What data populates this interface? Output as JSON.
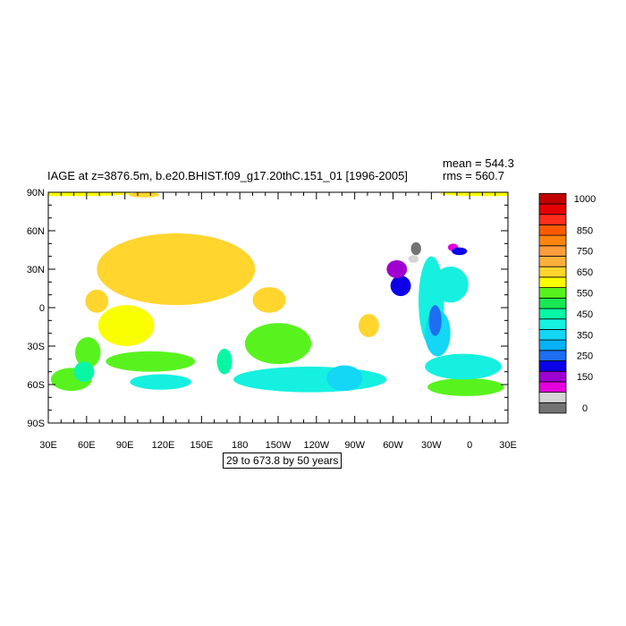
{
  "title": "IAGE at z=3876.5m, b.e20.BHIST.f09_g17.20thC.151_01 [1996-2005]",
  "stats": {
    "mean": "mean = 544.3",
    "rms": "rms = 560.7"
  },
  "info": "29 to 673.8 by 50 years",
  "map": {
    "lat_ticks": [
      {
        "lat": 90,
        "label": "90N"
      },
      {
        "lat": 60,
        "label": "60N"
      },
      {
        "lat": 30,
        "label": "30N"
      },
      {
        "lat": 0,
        "label": "0"
      },
      {
        "lat": -30,
        "label": "30S"
      },
      {
        "lat": -60,
        "label": "60S"
      },
      {
        "lat": -90,
        "label": "90S"
      }
    ],
    "lon_ticks": [
      {
        "lon": 30,
        "label": "30E"
      },
      {
        "lon": 60,
        "label": "60E"
      },
      {
        "lon": 90,
        "label": "90E"
      },
      {
        "lon": 120,
        "label": "120E"
      },
      {
        "lon": 150,
        "label": "150E"
      },
      {
        "lon": 180,
        "label": "180"
      },
      {
        "lon": 210,
        "label": "150W"
      },
      {
        "lon": 240,
        "label": "120W"
      },
      {
        "lon": 270,
        "label": "90W"
      },
      {
        "lon": 300,
        "label": "60W"
      },
      {
        "lon": 330,
        "label": "30W"
      },
      {
        "lon": 360,
        "label": "0"
      },
      {
        "lon": 390,
        "label": "30E"
      }
    ],
    "lon_range": [
      30,
      390
    ],
    "lat_range": [
      -90,
      90
    ]
  },
  "colorbar": {
    "colors": [
      "#737373",
      "#d4d4d4",
      "#e600dc",
      "#9f00cf",
      "#0c00e8",
      "#1d6ef0",
      "#07b1f5",
      "#14d6f5",
      "#16f0e0",
      "#09f7a5",
      "#19e854",
      "#58f31e",
      "#faff00",
      "#ffd52e",
      "#ffb03c",
      "#ff9c3c",
      "#fc8512",
      "#ff5a00",
      "#ff2d1c",
      "#e50000",
      "#c00000"
    ],
    "labels": [
      {
        "at": 0,
        "text": "0"
      },
      {
        "at": 3,
        "text": "150"
      },
      {
        "at": 5,
        "text": "250"
      },
      {
        "at": 7,
        "text": "350"
      },
      {
        "at": 9,
        "text": "450"
      },
      {
        "at": 11,
        "text": "550"
      },
      {
        "at": 13,
        "text": "650"
      },
      {
        "at": 15,
        "text": "750"
      },
      {
        "at": 17,
        "text": "850"
      },
      {
        "at": 20,
        "text": "1000"
      }
    ]
  },
  "regions": [
    {
      "color": "#ffd52e",
      "lon": 130,
      "lat": 30,
      "rlon": 62,
      "rlat": 28
    },
    {
      "color": "#ffd52e",
      "lon": 68,
      "lat": 5,
      "rlon": 9,
      "rlat": 9
    },
    {
      "color": "#ffd52e",
      "lon": 203,
      "lat": 6,
      "rlon": 13,
      "rlat": 10
    },
    {
      "color": "#ffd52e",
      "lon": 281,
      "lat": -14,
      "rlon": 8,
      "rlat": 9
    },
    {
      "color": "#faff00",
      "lon": 91,
      "lat": -14,
      "rlon": 22,
      "rlat": 16
    },
    {
      "color": "#faff00",
      "lon": 42,
      "lat": 89,
      "rlon": 53,
      "rlat": 2
    },
    {
      "color": "#faff00",
      "lon": 372,
      "lat": 89,
      "rlon": 35,
      "rlat": 2
    },
    {
      "color": "#ffd52e",
      "lon": 105,
      "lat": 88,
      "rlon": 12,
      "rlat": 2
    },
    {
      "color": "#58f31e",
      "lon": 210,
      "lat": -28,
      "rlon": 26,
      "rlat": 16
    },
    {
      "color": "#58f31e",
      "lon": 110,
      "lat": -42,
      "rlon": 35,
      "rlat": 8
    },
    {
      "color": "#58f31e",
      "lon": 48,
      "lat": -56,
      "rlon": 16,
      "rlat": 9
    },
    {
      "color": "#58f31e",
      "lon": 357,
      "lat": -62,
      "rlon": 30,
      "rlat": 7
    },
    {
      "color": "#58f31e",
      "lon": 61,
      "lat": -35,
      "rlon": 10,
      "rlat": 12
    },
    {
      "color": "#09f7a5",
      "lon": 168,
      "lat": -42,
      "rlon": 6,
      "rlat": 10
    },
    {
      "color": "#09f7a5",
      "lon": 58,
      "lat": -50,
      "rlon": 8,
      "rlat": 8
    },
    {
      "color": "#16f0e0",
      "lon": 235,
      "lat": -56,
      "rlon": 60,
      "rlat": 10
    },
    {
      "color": "#16f0e0",
      "lon": 118,
      "lat": -58,
      "rlon": 24,
      "rlat": 6
    },
    {
      "color": "#16f0e0",
      "lon": 355,
      "lat": -46,
      "rlon": 30,
      "rlat": 10
    },
    {
      "color": "#16f0e0",
      "lon": 330,
      "lat": 5,
      "rlon": 10,
      "rlat": 35
    },
    {
      "color": "#16f0e0",
      "lon": 345,
      "lat": 18,
      "rlon": 14,
      "rlat": 14
    },
    {
      "color": "#14d6f5",
      "lon": 335,
      "lat": -20,
      "rlon": 10,
      "rlat": 18
    },
    {
      "color": "#14d6f5",
      "lon": 262,
      "lat": -55,
      "rlon": 14,
      "rlat": 10
    },
    {
      "color": "#1d6ef0",
      "lon": 333,
      "lat": -10,
      "rlon": 5,
      "rlat": 12
    },
    {
      "color": "#0c00e8",
      "lon": 306,
      "lat": 17,
      "rlon": 8,
      "rlat": 8
    },
    {
      "color": "#9f00cf",
      "lon": 303,
      "lat": 30,
      "rlon": 8,
      "rlat": 7
    },
    {
      "color": "#e600dc",
      "lon": 347,
      "lat": 47,
      "rlon": 4,
      "rlat": 3
    },
    {
      "color": "#0c00e8",
      "lon": 352,
      "lat": 44,
      "rlon": 6,
      "rlat": 3
    },
    {
      "color": "#737373",
      "lon": 318,
      "lat": 46,
      "rlon": 4,
      "rlat": 5
    },
    {
      "color": "#d4d4d4",
      "lon": 316,
      "lat": 38,
      "rlon": 4,
      "rlat": 3
    }
  ]
}
